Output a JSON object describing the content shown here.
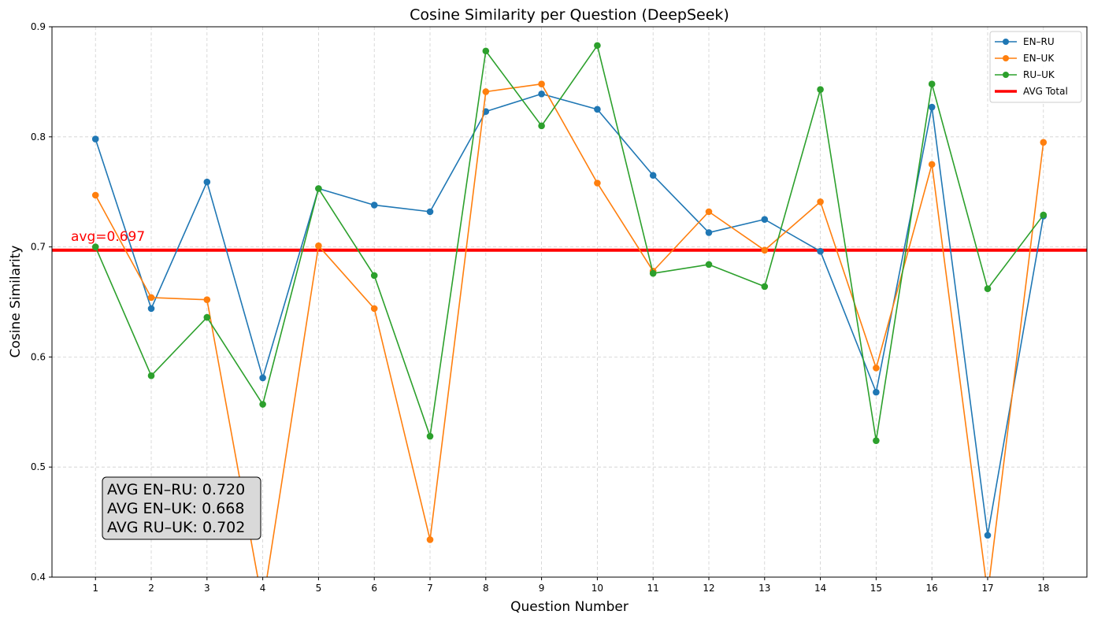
{
  "chart_data": {
    "type": "line",
    "title": "Cosine Similarity per Question (DeepSeek)",
    "xlabel": "Question Number",
    "ylabel": "Cosine Similarity",
    "ylim": [
      0.4,
      0.9
    ],
    "yticks": [
      "0.4",
      "0.5",
      "0.6",
      "0.7",
      "0.8",
      "0.9"
    ],
    "x": [
      1,
      2,
      3,
      4,
      5,
      6,
      7,
      8,
      9,
      10,
      11,
      12,
      13,
      14,
      15,
      16,
      17,
      18
    ],
    "grid": true,
    "legend_position": "top-right",
    "series": [
      {
        "name": "EN–RU",
        "color": "#1f77b4",
        "values": [
          0.798,
          0.644,
          0.759,
          0.581,
          0.753,
          0.738,
          0.732,
          0.823,
          0.839,
          0.825,
          0.765,
          0.713,
          0.725,
          0.696,
          0.568,
          0.827,
          0.438,
          0.728
        ]
      },
      {
        "name": "EN–UK",
        "color": "#ff7f0e",
        "values": [
          0.747,
          0.654,
          0.652,
          0.375,
          0.701,
          0.644,
          0.434,
          0.841,
          0.848,
          0.758,
          0.678,
          0.732,
          0.697,
          0.741,
          0.59,
          0.775,
          0.385,
          0.795
        ]
      },
      {
        "name": "RU–UK",
        "color": "#2ca02c",
        "values": [
          0.7,
          0.583,
          0.636,
          0.557,
          0.753,
          0.674,
          0.528,
          0.878,
          0.81,
          0.883,
          0.676,
          0.684,
          0.664,
          0.843,
          0.524,
          0.848,
          0.662,
          0.729
        ]
      }
    ],
    "avg_line": {
      "name": "AVG Total",
      "value": 0.697,
      "label": "avg=0.697",
      "color": "#ff0000"
    },
    "stats_box": [
      "AVG EN–RU: 0.720",
      "AVG EN–UK: 0.668",
      "AVG RU–UK: 0.702"
    ]
  }
}
